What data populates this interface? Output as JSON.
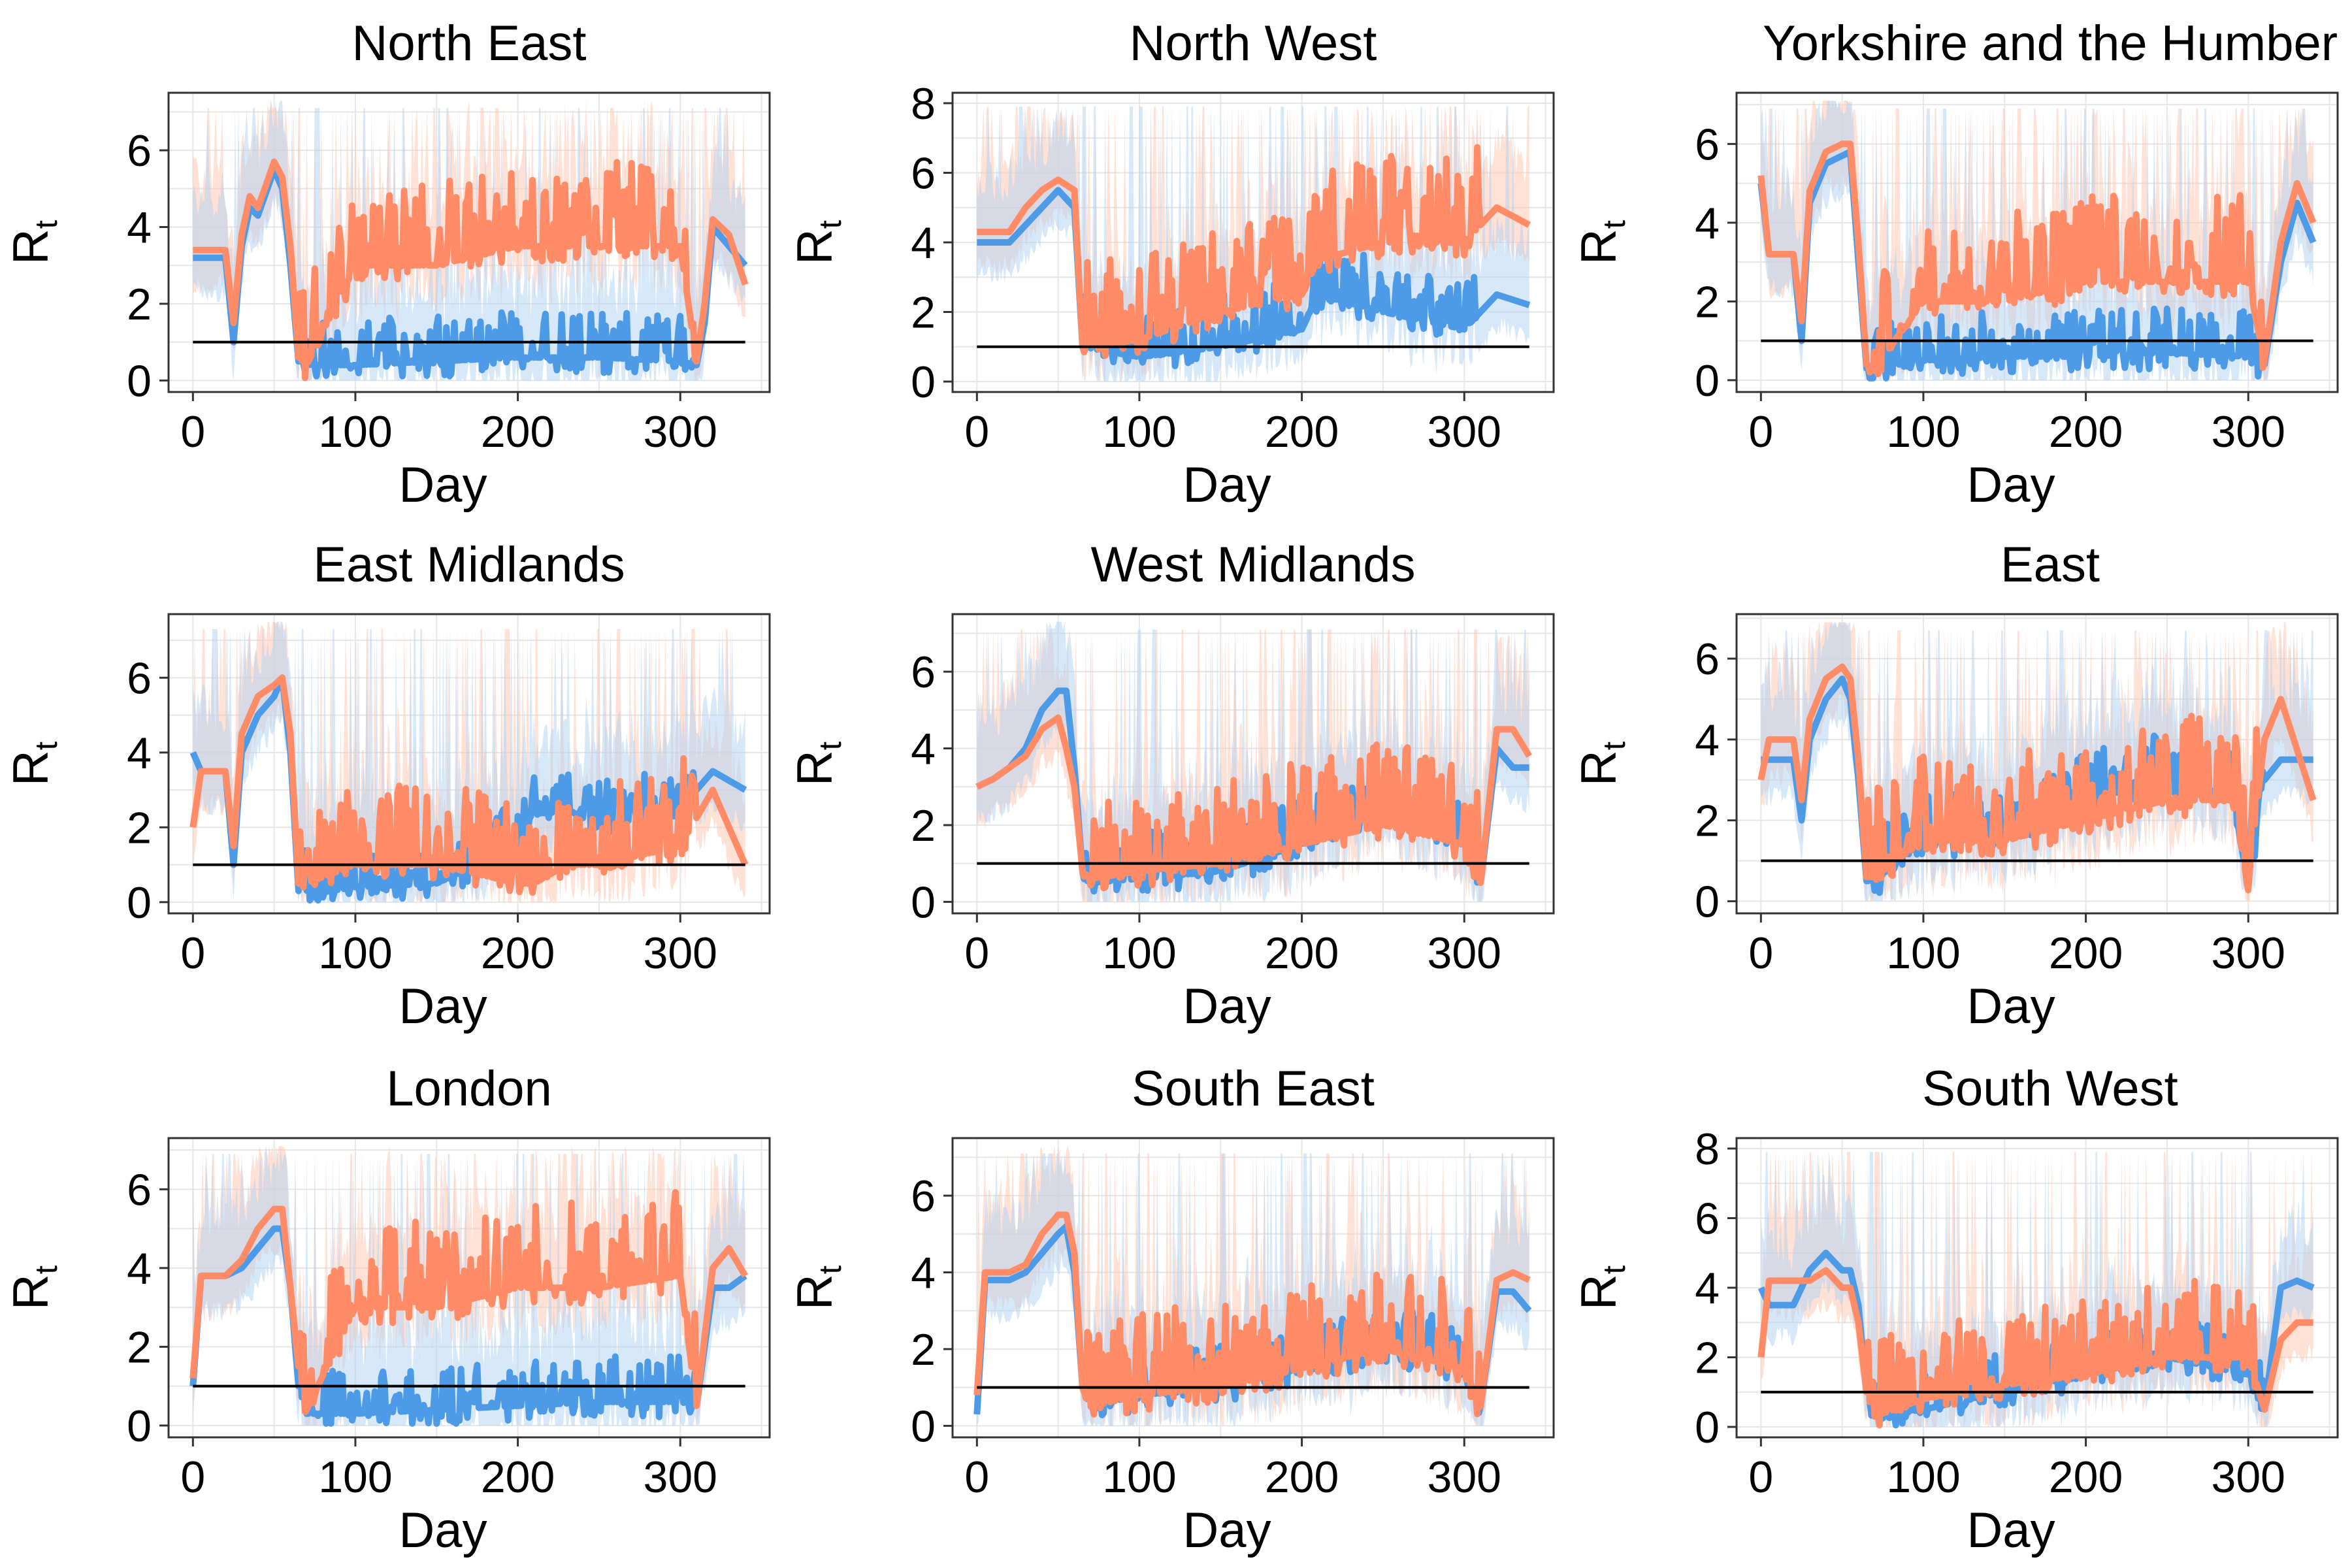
{
  "figure": {
    "colors": {
      "series_a": "#4d9be6",
      "series_b": "#ff8c66",
      "band_a": "#b6d6f2",
      "band_b": "#ffc9b5",
      "threshold": "#000000",
      "grid": "#e6e6e6",
      "frame": "#333333"
    }
  },
  "chart_data": [
    {
      "type": "line",
      "title": "North East",
      "xlabel": "Day",
      "ylabel": "R",
      "ylabel_subscript": "t",
      "xlim": [
        -15,
        355
      ],
      "ylim": [
        -0.3,
        7.5
      ],
      "xticks": [
        0,
        100,
        200,
        300
      ],
      "yticks": [
        0,
        2,
        4,
        6
      ],
      "threshold": 1,
      "x": [
        0,
        10,
        20,
        25,
        30,
        35,
        40,
        50,
        55,
        60,
        65,
        70,
        100,
        150,
        200,
        250,
        300,
        310,
        315,
        320,
        330,
        340
      ],
      "series": [
        {
          "values": [
            3.2,
            3.2,
            3.2,
            1.0,
            3.5,
            4.5,
            4.3,
            5.5,
            5.0,
            3.0,
            0.5,
            0.4,
            0.4,
            0.5,
            0.6,
            0.6,
            0.5,
            0.4,
            1.5,
            4.0,
            3.5,
            3.0
          ]
        },
        {
          "values": [
            3.4,
            3.4,
            3.4,
            1.5,
            3.8,
            4.8,
            4.5,
            5.7,
            5.3,
            3.5,
            0.6,
            0.4,
            3.0,
            3.0,
            3.5,
            3.5,
            3.5,
            0.5,
            2.0,
            4.2,
            3.8,
            2.5
          ]
        }
      ]
    },
    {
      "type": "line",
      "title": "North West",
      "xlabel": "Day",
      "ylabel": "R",
      "ylabel_subscript": "t",
      "xlim": [
        -15,
        355
      ],
      "ylim": [
        -0.3,
        8.3
      ],
      "xticks": [
        0,
        100,
        200,
        300
      ],
      "yticks": [
        0,
        2,
        4,
        6,
        8
      ],
      "threshold": 1,
      "x": [
        0,
        10,
        20,
        30,
        40,
        50,
        60,
        65,
        100,
        150,
        200,
        210,
        250,
        300,
        320,
        340
      ],
      "series": [
        {
          "values": [
            4.0,
            4.0,
            4.0,
            4.5,
            5.0,
            5.5,
            5.0,
            1.0,
            0.7,
            1.0,
            1.5,
            2.5,
            2.0,
            1.5,
            2.5,
            2.2
          ],
          "spike_amp": 1.5
        },
        {
          "values": [
            4.3,
            4.3,
            4.3,
            5.0,
            5.5,
            5.8,
            5.5,
            1.0,
            1.2,
            2.0,
            2.5,
            3.5,
            4.0,
            4.0,
            5.0,
            4.5
          ],
          "spike_amp": 2.5
        }
      ]
    },
    {
      "type": "line",
      "title": "Yorkshire and the Humber",
      "xlabel": "Day",
      "ylabel": "R",
      "ylabel_subscript": "t",
      "xlim": [
        -15,
        355
      ],
      "ylim": [
        -0.3,
        7.3
      ],
      "xticks": [
        0,
        100,
        200,
        300
      ],
      "yticks": [
        0,
        2,
        4,
        6
      ],
      "threshold": 1,
      "x": [
        0,
        5,
        20,
        25,
        30,
        40,
        50,
        55,
        60,
        65,
        70,
        100,
        150,
        200,
        250,
        300,
        310,
        320,
        330,
        340
      ],
      "series": [
        {
          "values": [
            5.0,
            3.2,
            3.2,
            1.0,
            4.5,
            5.5,
            5.7,
            5.8,
            3.0,
            0.3,
            0.3,
            0.5,
            0.6,
            0.6,
            0.7,
            0.6,
            0.4,
            3.0,
            4.5,
            3.5
          ]
        },
        {
          "values": [
            5.2,
            3.2,
            3.2,
            1.5,
            4.8,
            5.8,
            6.0,
            6.0,
            3.5,
            0.4,
            0.3,
            2.0,
            2.0,
            2.5,
            2.5,
            2.5,
            0.5,
            3.5,
            5.0,
            4.0
          ]
        }
      ]
    },
    {
      "type": "line",
      "title": "East Midlands",
      "xlabel": "Day",
      "ylabel": "R",
      "ylabel_subscript": "t",
      "xlim": [
        -15,
        355
      ],
      "ylim": [
        -0.3,
        7.7
      ],
      "xticks": [
        0,
        100,
        200,
        300
      ],
      "yticks": [
        0,
        2,
        4,
        6
      ],
      "threshold": 1,
      "x": [
        0,
        5,
        20,
        25,
        30,
        40,
        50,
        55,
        60,
        65,
        70,
        100,
        150,
        200,
        210,
        230,
        250,
        300,
        320,
        340
      ],
      "series": [
        {
          "values": [
            4.0,
            3.5,
            3.5,
            1.0,
            4.0,
            5.0,
            5.5,
            6.0,
            4.0,
            0.3,
            0.2,
            0.4,
            0.5,
            1.5,
            2.5,
            2.5,
            2.0,
            2.5,
            3.5,
            3.0
          ]
        },
        {
          "values": [
            2.0,
            3.5,
            3.5,
            1.5,
            4.5,
            5.5,
            5.8,
            6.0,
            4.5,
            0.5,
            0.5,
            1.0,
            1.0,
            0.5,
            0.5,
            1.0,
            1.0,
            1.5,
            3.0,
            1.0
          ]
        }
      ]
    },
    {
      "type": "line",
      "title": "West Midlands",
      "xlabel": "Day",
      "ylabel": "R",
      "ylabel_subscript": "t",
      "xlim": [
        -15,
        355
      ],
      "ylim": [
        -0.3,
        7.5
      ],
      "xticks": [
        0,
        100,
        200,
        300
      ],
      "yticks": [
        0,
        2,
        4,
        6
      ],
      "threshold": 1,
      "x": [
        0,
        10,
        20,
        30,
        40,
        50,
        55,
        60,
        65,
        70,
        100,
        150,
        200,
        250,
        300,
        310,
        320,
        330,
        340
      ],
      "series": [
        {
          "values": [
            3.0,
            3.2,
            3.5,
            4.0,
            5.0,
            5.5,
            5.5,
            3.5,
            0.8,
            0.5,
            0.6,
            0.8,
            1.5,
            2.5,
            1.5,
            0.5,
            4.0,
            3.5,
            3.5
          ]
        },
        {
          "values": [
            3.0,
            3.2,
            3.5,
            3.8,
            4.5,
            4.8,
            4.0,
            3.0,
            0.8,
            0.6,
            0.8,
            1.0,
            1.5,
            2.0,
            1.5,
            0.5,
            4.5,
            4.5,
            3.8
          ]
        }
      ]
    },
    {
      "type": "line",
      "title": "East",
      "xlabel": "Day",
      "ylabel": "R",
      "ylabel_subscript": "t",
      "xlim": [
        -15,
        355
      ],
      "ylim": [
        -0.3,
        7.1
      ],
      "xticks": [
        0,
        100,
        200,
        300
      ],
      "yticks": [
        0,
        2,
        4,
        6
      ],
      "threshold": 1,
      "x": [
        0,
        5,
        20,
        25,
        30,
        40,
        50,
        55,
        60,
        65,
        70,
        100,
        150,
        200,
        250,
        290,
        300,
        310,
        320,
        340
      ],
      "series": [
        {
          "values": [
            3.5,
            3.5,
            3.5,
            2.0,
            4.0,
            5.0,
            5.5,
            5.0,
            3.0,
            0.5,
            0.5,
            1.5,
            1.5,
            2.5,
            3.0,
            2.5,
            0.5,
            3.0,
            3.5,
            3.5
          ]
        },
        {
          "values": [
            3.0,
            4.0,
            4.0,
            2.5,
            4.5,
            5.5,
            5.8,
            5.5,
            3.5,
            0.6,
            0.6,
            1.5,
            1.5,
            2.0,
            2.5,
            2.5,
            0.5,
            4.0,
            5.0,
            2.5
          ]
        }
      ]
    },
    {
      "type": "line",
      "title": "London",
      "xlabel": "Day",
      "ylabel": "R",
      "ylabel_subscript": "t",
      "xlim": [
        -15,
        355
      ],
      "ylim": [
        -0.3,
        7.3
      ],
      "xticks": [
        0,
        100,
        200,
        300
      ],
      "yticks": [
        0,
        2,
        4,
        6
      ],
      "threshold": 1,
      "x": [
        0,
        5,
        20,
        30,
        40,
        50,
        55,
        60,
        65,
        70,
        100,
        150,
        200,
        250,
        300,
        310,
        320,
        330,
        340
      ],
      "series": [
        {
          "values": [
            1.0,
            3.8,
            3.8,
            4.0,
            4.5,
            5.0,
            5.0,
            3.5,
            1.0,
            0.3,
            0.3,
            0.4,
            0.5,
            0.6,
            0.6,
            0.5,
            3.5,
            3.5,
            3.8
          ]
        },
        {
          "values": [
            1.2,
            3.8,
            3.8,
            4.2,
            5.0,
            5.5,
            5.5,
            3.5,
            1.5,
            0.4,
            3.0,
            3.0,
            3.5,
            3.5,
            3.8,
            0.5,
            4.0,
            4.5,
            3.8
          ]
        }
      ]
    },
    {
      "type": "line",
      "title": "South East",
      "xlabel": "Day",
      "ylabel": "R",
      "ylabel_subscript": "t",
      "xlim": [
        -15,
        355
      ],
      "ylim": [
        -0.3,
        7.5
      ],
      "xticks": [
        0,
        100,
        200,
        300
      ],
      "yticks": [
        0,
        2,
        4,
        6
      ],
      "threshold": 1,
      "x": [
        0,
        5,
        20,
        30,
        40,
        50,
        55,
        60,
        65,
        70,
        100,
        150,
        200,
        250,
        300,
        310,
        320,
        330,
        340
      ],
      "series": [
        {
          "values": [
            0.3,
            3.8,
            3.8,
            4.0,
            4.5,
            5.0,
            5.2,
            4.0,
            1.0,
            0.5,
            0.8,
            1.0,
            1.5,
            2.0,
            1.5,
            0.5,
            3.5,
            3.5,
            3.0
          ]
        },
        {
          "values": [
            0.8,
            4.0,
            4.0,
            4.2,
            5.0,
            5.5,
            5.5,
            4.5,
            1.0,
            0.5,
            0.8,
            1.0,
            1.5,
            2.0,
            1.5,
            0.5,
            3.8,
            4.0,
            3.8
          ]
        }
      ]
    },
    {
      "type": "line",
      "title": "South West",
      "xlabel": "Day",
      "ylabel": "R",
      "ylabel_subscript": "t",
      "xlim": [
        -15,
        355
      ],
      "ylim": [
        -0.3,
        8.3
      ],
      "xticks": [
        0,
        100,
        200,
        300
      ],
      "yticks": [
        0,
        2,
        4,
        6,
        8
      ],
      "threshold": 1,
      "x": [
        0,
        5,
        20,
        30,
        40,
        50,
        55,
        60,
        65,
        70,
        100,
        150,
        200,
        250,
        300,
        310,
        320,
        330,
        340
      ],
      "series": [
        {
          "values": [
            4.0,
            3.5,
            3.5,
            4.5,
            5.0,
            4.5,
            4.5,
            3.5,
            1.0,
            0.3,
            0.5,
            1.0,
            1.5,
            2.0,
            1.5,
            0.5,
            4.0,
            4.2,
            4.0
          ]
        },
        {
          "values": [
            2.0,
            4.2,
            4.2,
            4.2,
            4.5,
            4.0,
            4.0,
            3.0,
            1.0,
            0.3,
            0.8,
            1.2,
            1.5,
            2.0,
            2.0,
            0.5,
            2.5,
            3.0,
            3.0
          ]
        }
      ]
    }
  ]
}
